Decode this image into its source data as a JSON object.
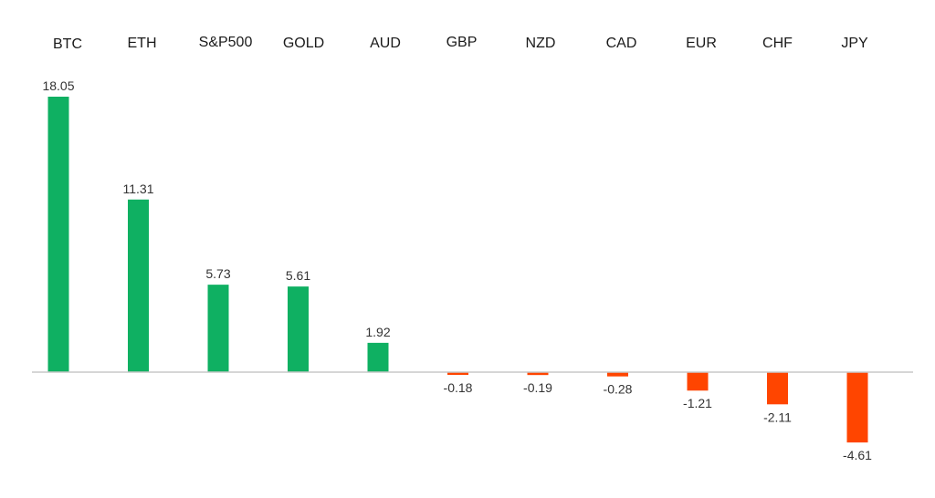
{
  "chart_data": {
    "type": "bar",
    "categories": [
      "BTC",
      "ETH",
      "S&P500",
      "GOLD",
      "AUD",
      "GBP",
      "NZD",
      "CAD",
      "EUR",
      "CHF",
      "JPY"
    ],
    "values": [
      18.05,
      11.31,
      5.73,
      5.61,
      1.92,
      -0.18,
      -0.19,
      -0.28,
      -1.21,
      -2.11,
      -4.61
    ],
    "value_labels": [
      "18.05",
      "11.31",
      "5.73",
      "5.61",
      "1.92",
      "-0.18",
      "-0.19",
      "-0.28",
      "-1.21",
      "-2.11",
      "-4.61"
    ],
    "ylim": [
      -4.61,
      18.05
    ],
    "grid": false,
    "legend": "none",
    "category_labels_position": "top",
    "colors": {
      "positive": "#0fb062",
      "negative": "#ff4500",
      "axis": "#c8c8c8"
    }
  }
}
